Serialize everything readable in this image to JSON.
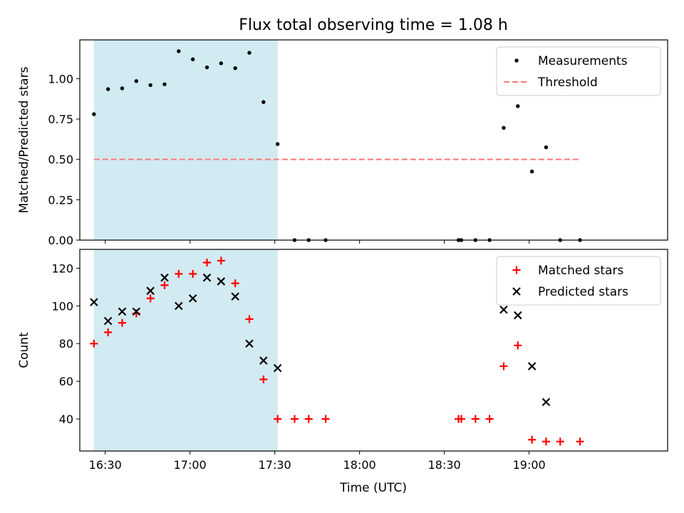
{
  "figure": {
    "title": "Flux total observing time = 1.08 h",
    "xlabel": "Time (UTC)"
  },
  "colors": {
    "shade": "#add8e6",
    "threshold": "#ff7f7f",
    "matched": "#ff0000",
    "predicted": "#000000",
    "measurements": "#000000"
  },
  "chart_data": [
    {
      "type": "scatter",
      "ylabel": "Matched/Predicted stars",
      "ylim": [
        0,
        1.24
      ],
      "yticks": [
        0,
        0.25,
        0.5,
        0.75,
        1.0
      ],
      "ytick_labels": [
        "0.00",
        "0.25",
        "0.50",
        "0.75",
        "1.00"
      ],
      "xlim": [
        "16:21",
        "19:49"
      ],
      "shaded_region": [
        "16:26",
        "17:31"
      ],
      "legend_position": "upper right",
      "series": [
        {
          "name": "Measurements",
          "kind": "points",
          "points": [
            [
              "16:26",
              0.78
            ],
            [
              "16:31",
              0.935
            ],
            [
              "16:36",
              0.94
            ],
            [
              "16:41",
              0.985
            ],
            [
              "16:46",
              0.96
            ],
            [
              "16:51",
              0.965
            ],
            [
              "16:56",
              1.17
            ],
            [
              "17:01",
              1.12
            ],
            [
              "17:06",
              1.07
            ],
            [
              "17:11",
              1.095
            ],
            [
              "17:16",
              1.065
            ],
            [
              "17:21",
              1.16
            ],
            [
              "17:26",
              0.855
            ],
            [
              "17:31",
              0.595
            ],
            [
              "17:37",
              0
            ],
            [
              "17:42",
              0
            ],
            [
              "17:48",
              0
            ],
            [
              "18:35",
              0
            ],
            [
              "18:36",
              0
            ],
            [
              "18:41",
              0
            ],
            [
              "18:46",
              0
            ],
            [
              "18:51",
              0.695
            ],
            [
              "18:56",
              0.83
            ],
            [
              "19:01",
              0.425
            ],
            [
              "19:06",
              0.575
            ],
            [
              "19:11",
              0
            ],
            [
              "19:18",
              0
            ]
          ]
        },
        {
          "name": "Threshold",
          "kind": "dashed-line",
          "x": [
            "16:26",
            "19:18"
          ],
          "y": [
            0.5,
            0.5
          ]
        }
      ]
    },
    {
      "type": "scatter",
      "ylabel": "Count",
      "ylim": [
        23,
        130
      ],
      "yticks": [
        40,
        60,
        80,
        100,
        120
      ],
      "ytick_labels": [
        "40",
        "60",
        "80",
        "100",
        "120"
      ],
      "xlim": [
        "16:21",
        "19:49"
      ],
      "xticks": [
        "16:30",
        "17:00",
        "17:30",
        "18:00",
        "18:30",
        "19:00"
      ],
      "xtick_labels": [
        "16:30",
        "17:00",
        "17:30",
        "18:00",
        "18:30",
        "19:00"
      ],
      "shaded_region": [
        "16:26",
        "17:31"
      ],
      "legend_position": "upper right",
      "series": [
        {
          "name": "Matched stars",
          "kind": "plus",
          "points": [
            [
              "16:26",
              80
            ],
            [
              "16:31",
              86
            ],
            [
              "16:36",
              91
            ],
            [
              "16:41",
              96
            ],
            [
              "16:46",
              104
            ],
            [
              "16:51",
              111
            ],
            [
              "16:56",
              117
            ],
            [
              "17:01",
              117
            ],
            [
              "17:06",
              123
            ],
            [
              "17:11",
              124
            ],
            [
              "17:16",
              112
            ],
            [
              "17:21",
              93
            ],
            [
              "17:26",
              61
            ],
            [
              "17:31",
              40
            ],
            [
              "17:37",
              40
            ],
            [
              "17:42",
              40
            ],
            [
              "17:48",
              40
            ],
            [
              "18:35",
              40
            ],
            [
              "18:36",
              40
            ],
            [
              "18:41",
              40
            ],
            [
              "18:46",
              40
            ],
            [
              "18:51",
              68
            ],
            [
              "18:56",
              79
            ],
            [
              "19:01",
              29
            ],
            [
              "19:06",
              28
            ],
            [
              "19:11",
              28
            ],
            [
              "19:18",
              28
            ]
          ]
        },
        {
          "name": "Predicted stars",
          "kind": "cross",
          "points": [
            [
              "16:26",
              102
            ],
            [
              "16:31",
              92
            ],
            [
              "16:36",
              97
            ],
            [
              "16:41",
              97
            ],
            [
              "16:46",
              108
            ],
            [
              "16:51",
              115
            ],
            [
              "16:56",
              100
            ],
            [
              "17:01",
              104
            ],
            [
              "17:06",
              115
            ],
            [
              "17:11",
              113
            ],
            [
              "17:16",
              105
            ],
            [
              "17:21",
              80
            ],
            [
              "17:26",
              71
            ],
            [
              "17:31",
              67
            ],
            [
              "18:51",
              98
            ],
            [
              "18:56",
              95
            ],
            [
              "19:01",
              68
            ],
            [
              "19:06",
              49
            ]
          ]
        }
      ]
    }
  ]
}
